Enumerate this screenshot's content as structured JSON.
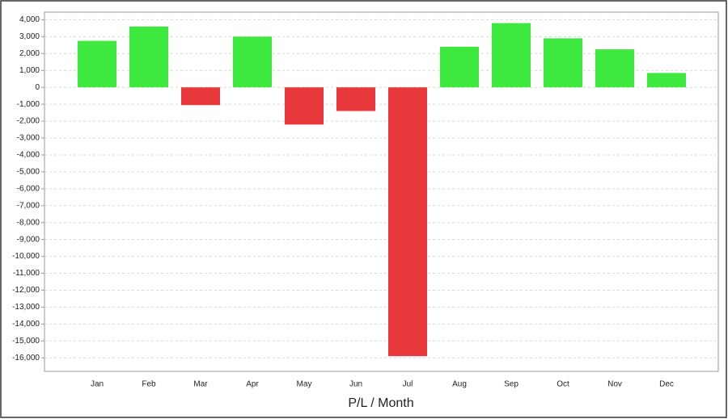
{
  "chart_data": {
    "type": "bar",
    "xlabel": "P/L / Month",
    "categories": [
      "Jan",
      "Feb",
      "Mar",
      "Apr",
      "May",
      "Jun",
      "Jul",
      "Aug",
      "Sep",
      "Oct",
      "Nov",
      "Dec"
    ],
    "values": [
      2750,
      3600,
      -1050,
      3000,
      -2200,
      -1400,
      -15900,
      2400,
      3800,
      2900,
      2250,
      850
    ],
    "positive_color": "#3ee83e",
    "negative_color": "#e8383c",
    "ylim": [
      -16800,
      4450
    ],
    "yticks": [
      {
        "value": 4000,
        "label": "4,000"
      },
      {
        "value": 3000,
        "label": "3,000"
      },
      {
        "value": 2000,
        "label": "2,000"
      },
      {
        "value": 1000,
        "label": "1,000"
      },
      0,
      {
        "value": -1000,
        "label": "-1,000"
      },
      {
        "value": -2000,
        "label": "-2,000"
      },
      {
        "value": -3000,
        "label": "-3,000"
      },
      {
        "value": -4000,
        "label": "-4,000"
      },
      {
        "value": -5000,
        "label": "-5,000"
      },
      {
        "value": -6000,
        "label": "-6,000"
      },
      {
        "value": -7000,
        "label": "-7,000"
      },
      {
        "value": -8000,
        "label": "-8,000"
      },
      {
        "value": -9000,
        "label": "-9,000"
      },
      {
        "value": -10000,
        "label": "-10,000"
      },
      {
        "value": -11000,
        "label": "-11,000"
      },
      {
        "value": -12000,
        "label": "-12,000"
      },
      {
        "value": -13000,
        "label": "-13,000"
      },
      {
        "value": -14000,
        "label": "-14,000"
      },
      {
        "value": -15000,
        "label": "-15,000"
      },
      {
        "value": -16000,
        "label": "-16,000"
      }
    ],
    "grid": true
  }
}
